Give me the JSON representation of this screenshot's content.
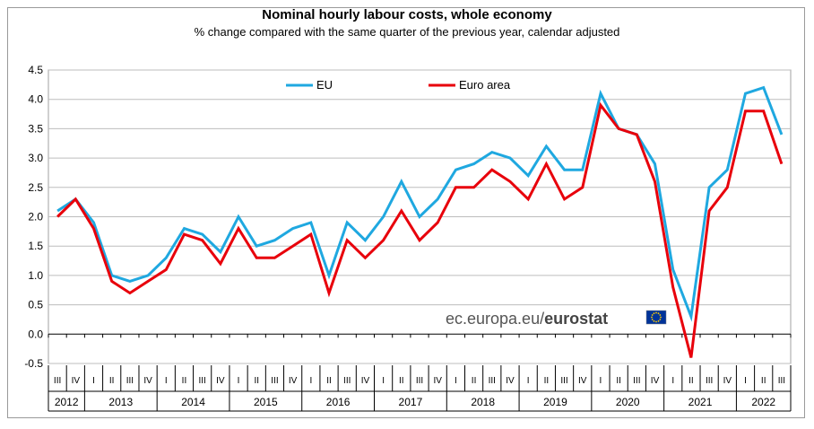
{
  "chart_data": {
    "type": "line",
    "title": "Nominal hourly labour costs, whole economy",
    "subtitle": "% change compared with the same quarter of the previous  year, calendar adjusted",
    "ylim": [
      -0.5,
      4.5
    ],
    "yticks": [
      "4.5",
      "4.0",
      "3.5",
      "3.0",
      "2.5",
      "2.0",
      "1.5",
      "1.0",
      "0.5",
      "0.0",
      "-0.5"
    ],
    "grid": true,
    "legend_position": "top-center",
    "quarters": [
      "III",
      "IV",
      "I",
      "II",
      "III",
      "IV",
      "I",
      "II",
      "III",
      "IV",
      "I",
      "II",
      "III",
      "IV",
      "I",
      "II",
      "III",
      "IV",
      "I",
      "II",
      "III",
      "IV",
      "I",
      "II",
      "III",
      "IV",
      "I",
      "II",
      "III",
      "IV",
      "I",
      "II",
      "III",
      "IV",
      "I",
      "II",
      "III",
      "IV",
      "I",
      "II",
      "III"
    ],
    "years": [
      {
        "label": "2012",
        "quarters": 2
      },
      {
        "label": "2013",
        "quarters": 4
      },
      {
        "label": "2014",
        "quarters": 4
      },
      {
        "label": "2015",
        "quarters": 4
      },
      {
        "label": "2016",
        "quarters": 4
      },
      {
        "label": "2017",
        "quarters": 4
      },
      {
        "label": "2018",
        "quarters": 4
      },
      {
        "label": "2019",
        "quarters": 4
      },
      {
        "label": "2020",
        "quarters": 4
      },
      {
        "label": "2021",
        "quarters": 4
      },
      {
        "label": "2022",
        "quarters": 3
      }
    ],
    "series": [
      {
        "name": "EU",
        "color": "#1fa8e0",
        "values": [
          2.1,
          2.3,
          1.9,
          1.0,
          0.9,
          1.0,
          1.3,
          1.8,
          1.7,
          1.4,
          2.0,
          1.5,
          1.6,
          1.8,
          1.9,
          1.0,
          1.9,
          1.6,
          2.0,
          2.6,
          2.0,
          2.3,
          2.8,
          2.9,
          3.1,
          3.0,
          2.7,
          3.2,
          2.8,
          2.8,
          4.1,
          3.5,
          3.4,
          2.9,
          1.1,
          0.3,
          2.5,
          2.8,
          4.1,
          4.2,
          3.4
        ]
      },
      {
        "name": "Euro area",
        "color": "#e8000b",
        "values": [
          2.0,
          2.3,
          1.8,
          0.9,
          0.7,
          0.9,
          1.1,
          1.7,
          1.6,
          1.2,
          1.8,
          1.3,
          1.3,
          1.5,
          1.7,
          0.7,
          1.6,
          1.3,
          1.6,
          2.1,
          1.6,
          1.9,
          2.5,
          2.5,
          2.8,
          2.6,
          2.3,
          2.9,
          2.3,
          2.5,
          3.9,
          3.5,
          3.4,
          2.6,
          0.8,
          -0.4,
          2.1,
          2.5,
          3.8,
          3.8,
          2.9
        ]
      }
    ]
  },
  "watermark": {
    "text_plain": "ec.europa.eu/",
    "text_bold": "eurostat",
    "flag_color": "#003399",
    "star_color": "#ffcc00"
  }
}
